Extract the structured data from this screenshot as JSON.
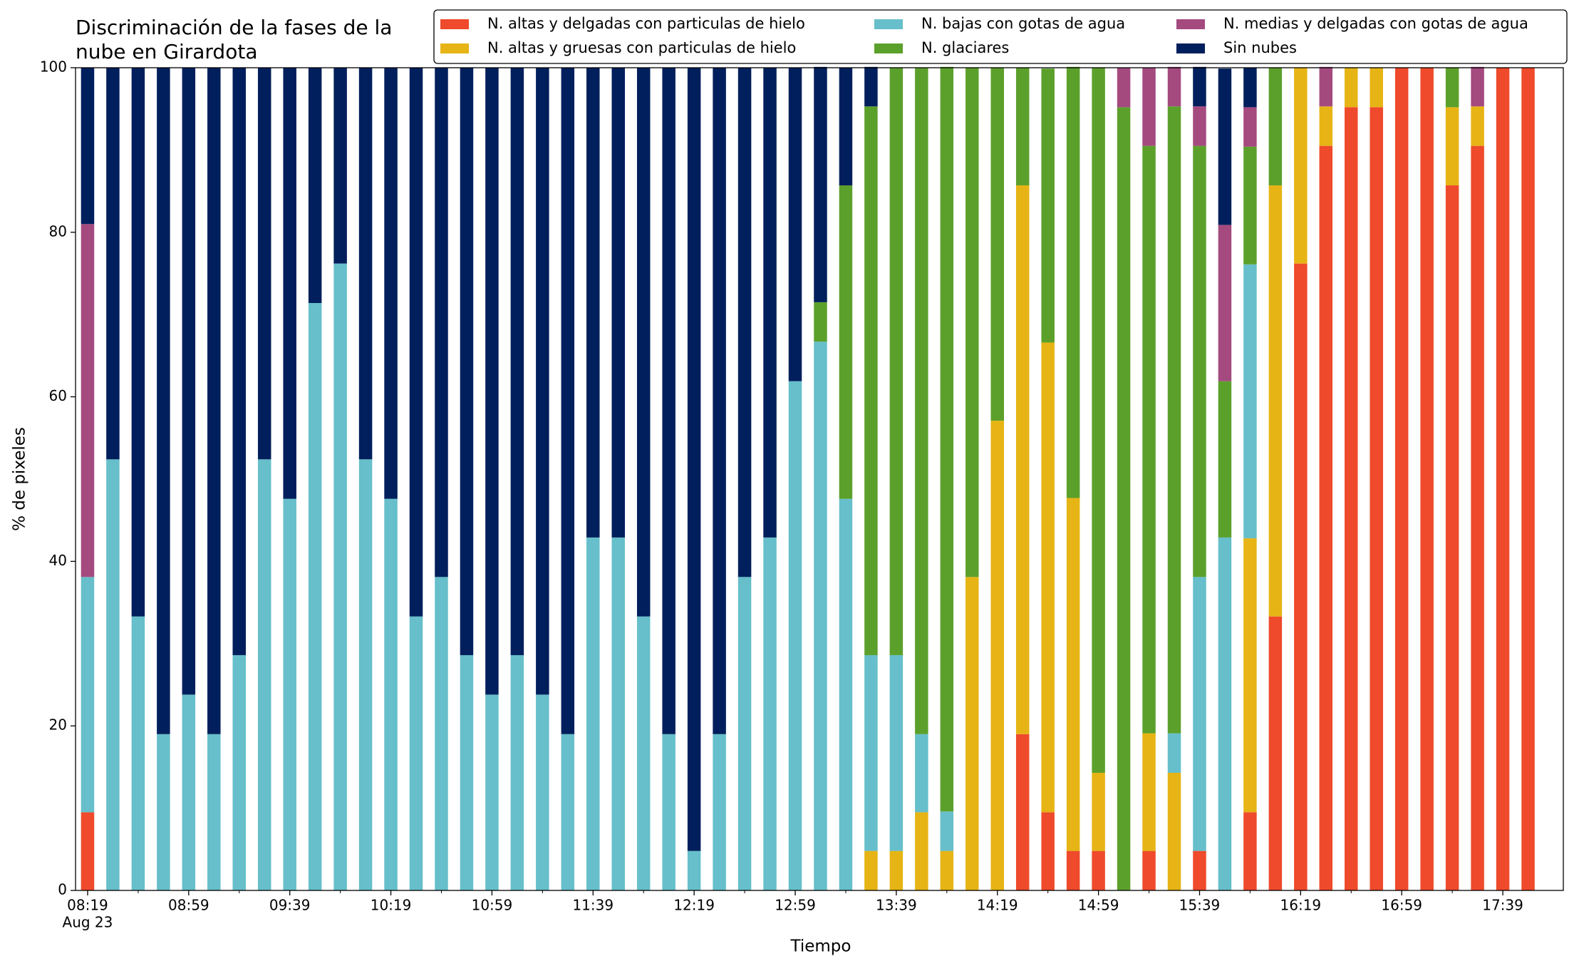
{
  "chart_data": {
    "type": "stacked_bar",
    "title": [
      "Discriminación de la fases de la",
      "nube en Girardota"
    ],
    "xlabel": "Tiempo",
    "ylabel": "% de pixeles",
    "date_label": "Aug 23",
    "categories": [
      "08:19",
      null,
      null,
      null,
      "08:59",
      null,
      null,
      null,
      "09:39",
      null,
      null,
      null,
      "10:19",
      null,
      null,
      null,
      "10:59",
      null,
      null,
      null,
      "11:39",
      null,
      null,
      null,
      "12:19",
      null,
      null,
      null,
      "12:59",
      null,
      null,
      null,
      "13:39",
      null,
      null,
      null,
      "14:19",
      null,
      null,
      null,
      "14:59",
      null,
      null,
      null,
      "15:39",
      null,
      null,
      null,
      "16:19",
      null,
      null,
      null,
      "16:59",
      null,
      null,
      null,
      "17:39",
      null
    ],
    "series": [
      {
        "name": "N. altas y delgadas con particulas de hielo",
        "color": "#ee4a2b",
        "values": [
          9.5,
          0,
          0,
          0,
          0,
          0,
          0,
          0,
          0,
          0,
          0,
          0,
          0,
          0,
          0,
          0,
          0,
          0,
          0,
          0,
          0,
          0,
          0,
          0,
          0,
          0,
          0,
          0,
          0,
          0,
          0,
          0,
          0,
          0,
          0,
          0,
          0,
          19.0,
          9.5,
          4.8,
          4.8,
          0,
          4.8,
          0,
          4.8,
          0,
          9.5,
          33.3,
          76.2,
          90.5,
          95.2,
          95.2,
          100,
          100,
          85.7,
          90.5,
          100,
          100
        ]
      },
      {
        "name": "N. altas y gruesas con particulas de hielo",
        "color": "#e6b415",
        "values": [
          0,
          0,
          0,
          0,
          0,
          0,
          0,
          0,
          0,
          0,
          0,
          0,
          0,
          0,
          0,
          0,
          0,
          0,
          0,
          0,
          0,
          0,
          0,
          0,
          0,
          0,
          0,
          0,
          0,
          0,
          0,
          4.8,
          4.8,
          9.5,
          4.8,
          38.1,
          57.1,
          66.7,
          57.1,
          42.9,
          9.5,
          0,
          14.3,
          14.3,
          0,
          0,
          33.3,
          52.4,
          23.8,
          4.8,
          4.8,
          4.8,
          0,
          0,
          9.5,
          4.8,
          0,
          0
        ]
      },
      {
        "name": "N. bajas con gotas de agua",
        "color": "#66bfca",
        "values": [
          28.6,
          52.4,
          33.3,
          19.0,
          23.8,
          19.0,
          28.6,
          52.4,
          47.6,
          71.4,
          76.2,
          52.4,
          47.6,
          33.3,
          38.1,
          28.6,
          23.8,
          28.6,
          23.8,
          19.0,
          42.9,
          42.9,
          33.3,
          19.0,
          4.8,
          19.0,
          38.1,
          42.9,
          61.9,
          66.7,
          47.6,
          23.8,
          23.8,
          9.5,
          4.8,
          0,
          0,
          0,
          0,
          0,
          0,
          0,
          0,
          4.8,
          33.3,
          42.9,
          33.3,
          0,
          0,
          0,
          0,
          0,
          0,
          0,
          0,
          0,
          0,
          0
        ]
      },
      {
        "name": "N. glaciares",
        "color": "#5ca02c",
        "values": [
          0,
          0,
          0,
          0,
          0,
          0,
          0,
          0,
          0,
          0,
          0,
          0,
          0,
          0,
          0,
          0,
          0,
          0,
          0,
          0,
          0,
          0,
          0,
          0,
          0,
          0,
          0,
          0,
          0,
          4.8,
          38.1,
          66.7,
          71.4,
          81.0,
          90.5,
          61.9,
          42.9,
          14.3,
          33.3,
          52.4,
          85.7,
          95.2,
          71.4,
          76.2,
          52.4,
          19.0,
          14.3,
          14.3,
          0,
          0,
          0,
          0,
          0,
          0,
          4.8,
          0,
          0,
          0
        ]
      },
      {
        "name": "N. medias y delgadas con gotas de agua",
        "color": "#a44a7f",
        "values": [
          42.9,
          0,
          0,
          0,
          0,
          0,
          0,
          0,
          0,
          0,
          0,
          0,
          0,
          0,
          0,
          0,
          0,
          0,
          0,
          0,
          0,
          0,
          0,
          0,
          0,
          0,
          0,
          0,
          0,
          0,
          0,
          0,
          0,
          0,
          0,
          0,
          0,
          0,
          0,
          0,
          0,
          4.8,
          9.5,
          4.8,
          4.8,
          19.0,
          4.8,
          0,
          0,
          4.8,
          0,
          0,
          0,
          0,
          0,
          4.8,
          0,
          0
        ]
      },
      {
        "name": "Sin nubes",
        "color": "#001f5c",
        "values": [
          19.0,
          47.6,
          66.7,
          81.0,
          76.2,
          81.0,
          71.4,
          47.6,
          52.4,
          28.6,
          23.8,
          47.6,
          52.4,
          66.7,
          61.9,
          71.4,
          76.2,
          71.4,
          76.2,
          81.0,
          57.1,
          57.1,
          66.7,
          81.0,
          95.2,
          81.0,
          61.9,
          57.1,
          38.1,
          28.6,
          14.3,
          4.8,
          0,
          0,
          0,
          0,
          0,
          0,
          0,
          0,
          0,
          0,
          0,
          0,
          4.8,
          19.0,
          4.8,
          0,
          0,
          0,
          0,
          0,
          0,
          0,
          0,
          0,
          0,
          0
        ]
      }
    ],
    "ylim": [
      0,
      100
    ],
    "yticks": [
      0,
      20,
      40,
      60,
      80,
      100
    ],
    "legend": "top-right",
    "legend_columns": 3
  }
}
